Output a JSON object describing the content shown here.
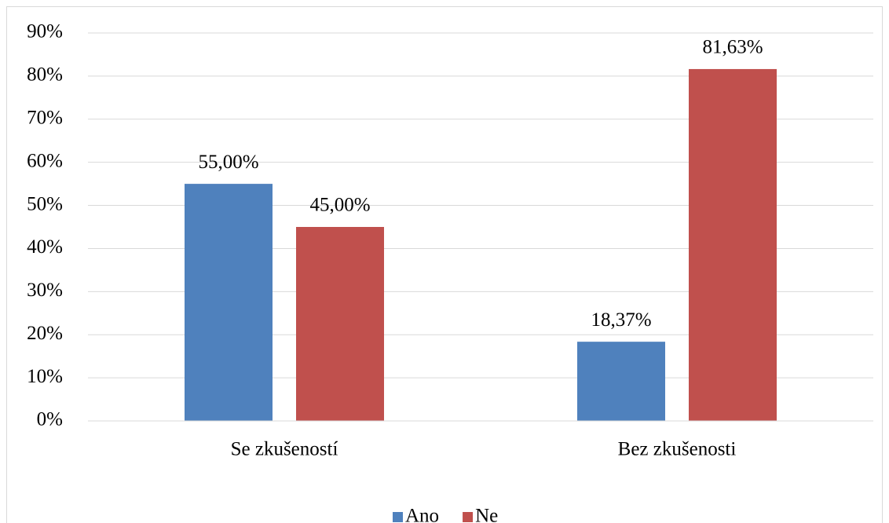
{
  "chart_data": {
    "type": "bar",
    "categories": [
      "Se zkušeností",
      "Bez zkušenosti"
    ],
    "series": [
      {
        "name": "Ano",
        "color": "#4f81bd",
        "values": [
          55,
          18.37
        ],
        "value_labels": [
          "55,00%",
          "18,37%"
        ]
      },
      {
        "name": "Ne",
        "color": "#c0504d",
        "values": [
          45,
          81.63
        ],
        "value_labels": [
          "45,00%",
          "81,63%"
        ]
      }
    ],
    "ylim": [
      0,
      90
    ],
    "yticks": [
      {
        "value": 0,
        "label": "0%"
      },
      {
        "value": 10,
        "label": "10%"
      },
      {
        "value": 20,
        "label": "20%"
      },
      {
        "value": 30,
        "label": "30%"
      },
      {
        "value": 40,
        "label": "40%"
      },
      {
        "value": 50,
        "label": "50%"
      },
      {
        "value": 60,
        "label": "60%"
      },
      {
        "value": 70,
        "label": "70%"
      },
      {
        "value": 80,
        "label": "80%"
      },
      {
        "value": 90,
        "label": "90%"
      }
    ],
    "grid": true,
    "legend": "bottom"
  }
}
